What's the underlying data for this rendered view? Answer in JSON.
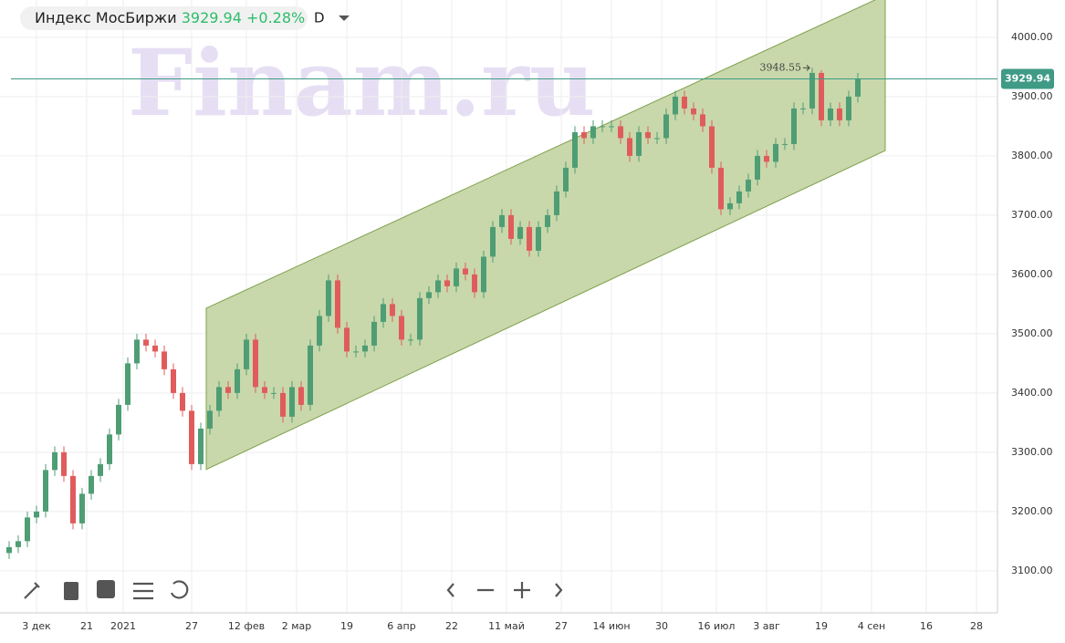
{
  "chart_data": {
    "type": "candlestick",
    "title": "Индекс МосБиржи",
    "last": 3929.94,
    "change": "+0.28%",
    "interval": "D",
    "watermark": "Finam.ru",
    "up_color": "#4f9d74",
    "down_color": "#e05c5c",
    "grid": true,
    "x": [
      0,
      2,
      4,
      6,
      8,
      10,
      12,
      14,
      16,
      18,
      20,
      22,
      24,
      26,
      28,
      30,
      32,
      34,
      36,
      38,
      40,
      42,
      44,
      46,
      48,
      50,
      52,
      54,
      56,
      58,
      60,
      62,
      64,
      66,
      68,
      70,
      72,
      74,
      76,
      78,
      80,
      82,
      84,
      86,
      88,
      90,
      92,
      94,
      96,
      98,
      100,
      102,
      104,
      106,
      108,
      110,
      112,
      114,
      116,
      118,
      120,
      122,
      124,
      126,
      128,
      130,
      132,
      134,
      136,
      138,
      140,
      142,
      144,
      146,
      148,
      150,
      152,
      154,
      156,
      158,
      160,
      162,
      164,
      166,
      168,
      170,
      172,
      174,
      176,
      178,
      180,
      182,
      184,
      186
    ],
    "open": [
      3130,
      3140,
      3150,
      3190,
      3200,
      3270,
      3300,
      3260,
      3180,
      3230,
      3260,
      3280,
      3330,
      3380,
      3450,
      3490,
      3480,
      3470,
      3440,
      3400,
      3370,
      3280,
      3340,
      3370,
      3410,
      3400,
      3440,
      3490,
      3410,
      3400,
      3400,
      3360,
      3410,
      3380,
      3480,
      3530,
      3590,
      3510,
      3470,
      3470,
      3480,
      3520,
      3550,
      3530,
      3490,
      3490,
      3560,
      3570,
      3590,
      3580,
      3610,
      3600,
      3570,
      3630,
      3680,
      3700,
      3660,
      3680,
      3640,
      3680,
      3700,
      3740,
      3780,
      3840,
      3830,
      3850,
      3850,
      3850,
      3830,
      3800,
      3840,
      3830,
      3830,
      3870,
      3900,
      3880,
      3870,
      3850,
      3780,
      3710,
      3720,
      3740,
      3760,
      3800,
      3790,
      3820,
      3820,
      3880,
      3880,
      3940,
      3860,
      3880,
      3860,
      3900
    ],
    "high": [
      3150,
      3160,
      3200,
      3210,
      3280,
      3310,
      3310,
      3270,
      3240,
      3270,
      3290,
      3340,
      3390,
      3460,
      3500,
      3500,
      3490,
      3480,
      3450,
      3410,
      3380,
      3350,
      3380,
      3420,
      3420,
      3450,
      3500,
      3500,
      3420,
      3410,
      3410,
      3420,
      3420,
      3490,
      3540,
      3600,
      3600,
      3520,
      3480,
      3490,
      3530,
      3560,
      3560,
      3540,
      3500,
      3570,
      3580,
      3600,
      3600,
      3620,
      3620,
      3610,
      3640,
      3690,
      3710,
      3710,
      3690,
      3690,
      3690,
      3710,
      3750,
      3790,
      3850,
      3850,
      3860,
      3860,
      3860,
      3860,
      3840,
      3850,
      3850,
      3840,
      3880,
      3910,
      3910,
      3890,
      3880,
      3860,
      3790,
      3730,
      3750,
      3770,
      3810,
      3810,
      3830,
      3830,
      3890,
      3890,
      3948.55,
      3945,
      3890,
      3890,
      3910,
      3940
    ],
    "low": [
      3120,
      3130,
      3140,
      3180,
      3190,
      3260,
      3250,
      3170,
      3170,
      3220,
      3250,
      3270,
      3320,
      3370,
      3440,
      3470,
      3460,
      3430,
      3390,
      3360,
      3270,
      3270,
      3330,
      3360,
      3390,
      3390,
      3430,
      3400,
      3390,
      3390,
      3350,
      3350,
      3370,
      3370,
      3470,
      3520,
      3500,
      3460,
      3460,
      3460,
      3470,
      3510,
      3520,
      3480,
      3480,
      3480,
      3550,
      3560,
      3570,
      3570,
      3590,
      3560,
      3560,
      3620,
      3670,
      3650,
      3650,
      3630,
      3630,
      3670,
      3690,
      3730,
      3770,
      3820,
      3820,
      3840,
      3840,
      3820,
      3790,
      3790,
      3820,
      3820,
      3820,
      3860,
      3870,
      3860,
      3840,
      3770,
      3700,
      3700,
      3710,
      3730,
      3750,
      3780,
      3780,
      3810,
      3810,
      3870,
      3870,
      3850,
      3850,
      3850,
      3850,
      3890
    ],
    "close": [
      3140,
      3150,
      3190,
      3200,
      3270,
      3300,
      3260,
      3180,
      3230,
      3260,
      3280,
      3330,
      3380,
      3450,
      3490,
      3480,
      3470,
      3440,
      3400,
      3370,
      3280,
      3340,
      3370,
      3410,
      3400,
      3440,
      3490,
      3410,
      3400,
      3400,
      3360,
      3410,
      3380,
      3480,
      3530,
      3590,
      3510,
      3470,
      3470,
      3480,
      3520,
      3550,
      3530,
      3490,
      3490,
      3560,
      3570,
      3590,
      3580,
      3610,
      3600,
      3570,
      3630,
      3680,
      3700,
      3660,
      3680,
      3640,
      3680,
      3700,
      3740,
      3780,
      3840,
      3830,
      3850,
      3850,
      3850,
      3830,
      3800,
      3840,
      3830,
      3830,
      3870,
      3900,
      3880,
      3870,
      3850,
      3780,
      3710,
      3720,
      3740,
      3760,
      3800,
      3790,
      3820,
      3820,
      3880,
      3880,
      3940,
      3860,
      3880,
      3860,
      3900,
      3929.94
    ],
    "channel": {
      "color": "#c5d6a6",
      "x": [
        43.2,
        192
      ],
      "upper": [
        3543,
        4071
      ],
      "lower": [
        3271,
        3809
      ]
    },
    "xlim": [
      -2,
      216.6
    ],
    "ylim": [
      3029,
      4063
    ],
    "xticks": [
      {
        "value": 6,
        "label": "3 дек"
      },
      {
        "value": 17,
        "label": "21"
      },
      {
        "value": 25,
        "label": "2021"
      },
      {
        "value": 40,
        "label": "27"
      },
      {
        "value": 52,
        "label": "12 фев"
      },
      {
        "value": 63,
        "label": "2 мар"
      },
      {
        "value": 74,
        "label": "19"
      },
      {
        "value": 86,
        "label": "6 апр"
      },
      {
        "value": 97,
        "label": "22"
      },
      {
        "value": 109,
        "label": "11 май"
      },
      {
        "value": 121,
        "label": "27"
      },
      {
        "value": 132,
        "label": "14 июн"
      },
      {
        "value": 143,
        "label": "30"
      },
      {
        "value": 155,
        "label": "16 июл"
      },
      {
        "value": 166,
        "label": "3 авг"
      },
      {
        "value": 178,
        "label": "19"
      },
      {
        "value": 189,
        "label": "4 сен"
      },
      {
        "value": 201,
        "label": "16"
      },
      {
        "value": 212,
        "label": "28"
      }
    ],
    "yticks": [
      {
        "value": 3100,
        "label": "3100.00"
      },
      {
        "value": 3200,
        "label": "3200.00"
      },
      {
        "value": 3300,
        "label": "3300.00"
      },
      {
        "value": 3400,
        "label": "3400.00"
      },
      {
        "value": 3500,
        "label": "3500.00"
      },
      {
        "value": 3600,
        "label": "3600.00"
      },
      {
        "value": 3700,
        "label": "3700.00"
      },
      {
        "value": 3800,
        "label": "3800.00"
      },
      {
        "value": 3900,
        "label": "3900.00"
      },
      {
        "value": 4000,
        "label": "4000.00"
      }
    ]
  }
}
